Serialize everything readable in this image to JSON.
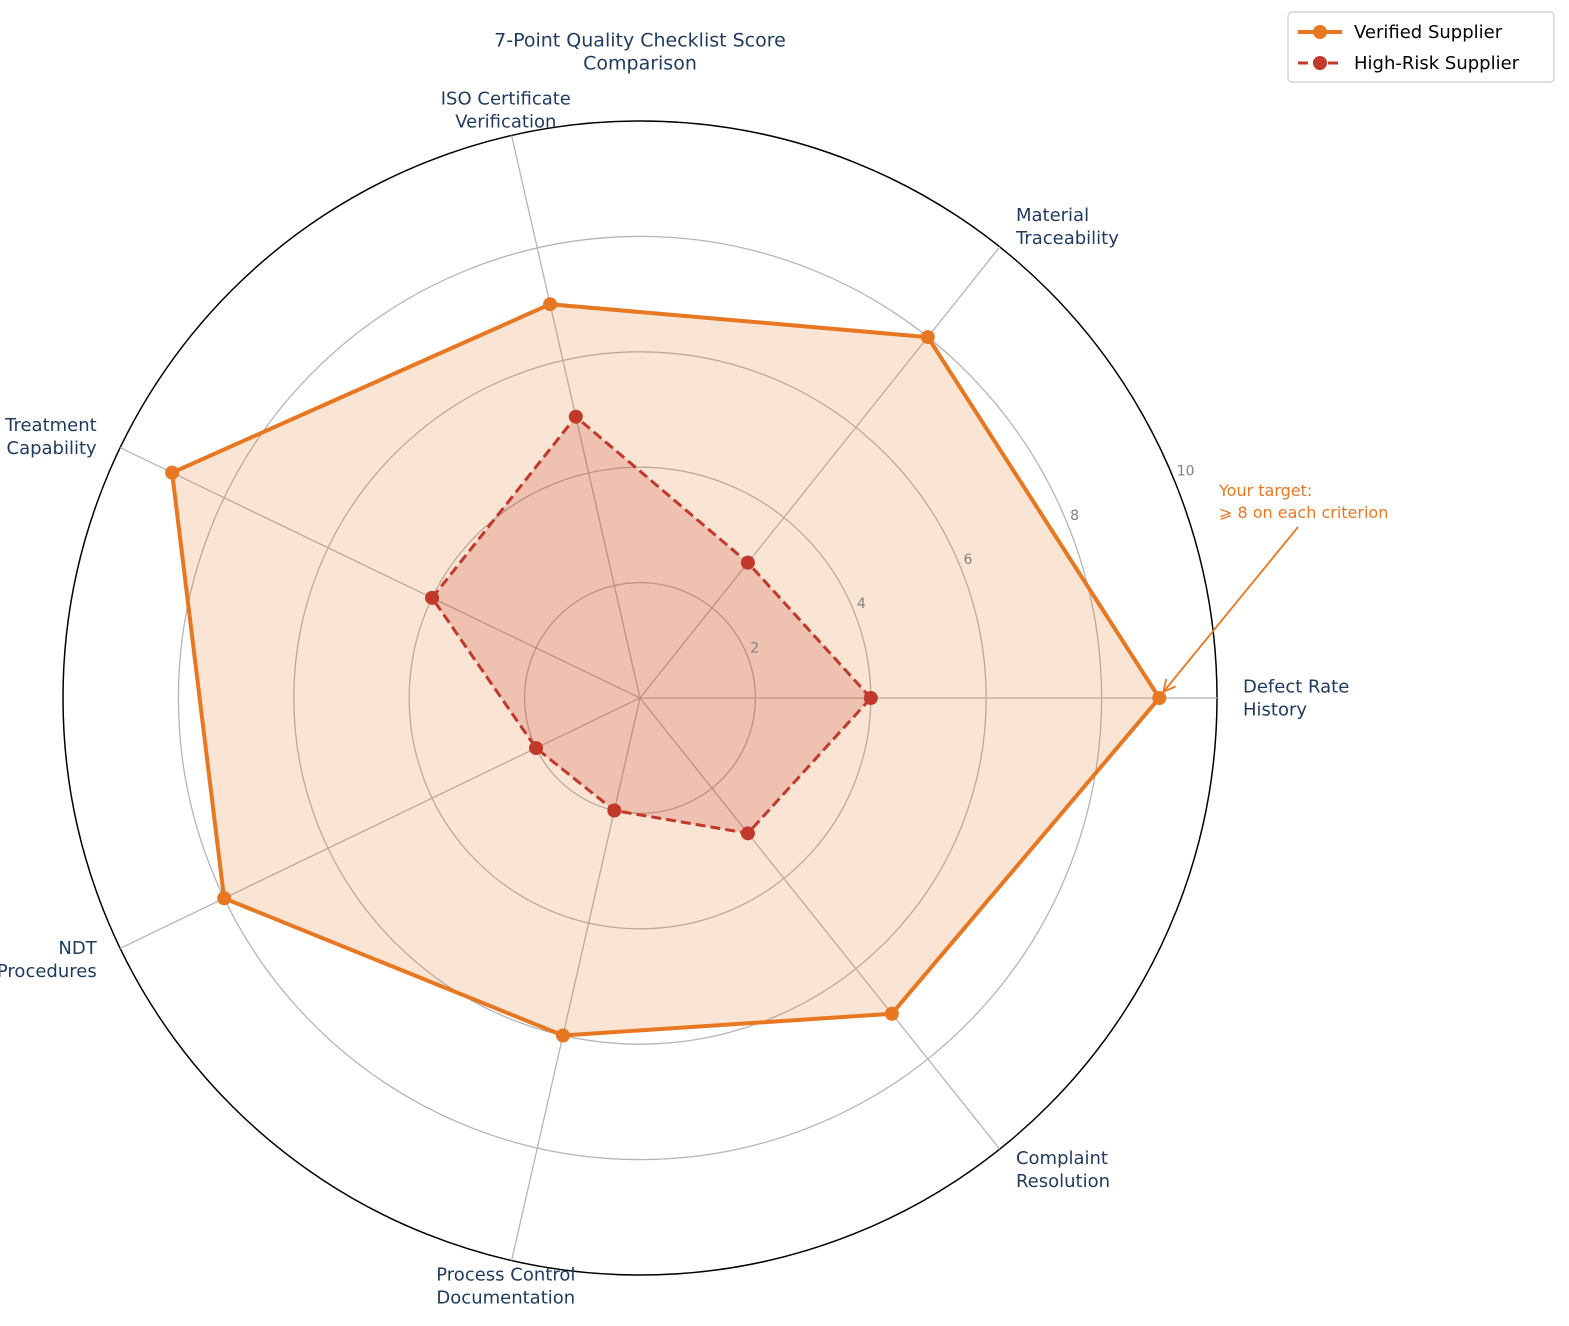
{
  "chart_data": {
    "type": "radar",
    "title": "7-Point Quality Checklist Score\nComparison",
    "categories": [
      "Defect Rate\nHistory",
      "Material\nTraceability",
      "ISO Certificate\nVerification",
      "Heat Treatment\nCapability",
      "NDT\nProcedures",
      "Process Control\nDocumentation",
      "Complaint\nResolution"
    ],
    "series": [
      {
        "name": "Verified Supplier",
        "values": [
          9,
          8,
          7,
          9,
          8,
          6,
          7
        ],
        "color": "#e87722",
        "style": "solid"
      },
      {
        "name": "High-Risk Supplier",
        "values": [
          4,
          3,
          5,
          4,
          2,
          2,
          3
        ],
        "color": "#c0392b",
        "style": "dashed"
      }
    ],
    "r_ticks": [
      "2",
      "4",
      "6",
      "8",
      "10"
    ],
    "rlim": [
      0,
      10
    ],
    "grid": true,
    "legend_position": "top-right",
    "annotation": {
      "text": [
        "Your target:",
        "⩾ 8 on each criterion"
      ],
      "color": "#e87722",
      "points_to": {
        "category": "Defect Rate\nHistory",
        "value": 9
      }
    }
  }
}
